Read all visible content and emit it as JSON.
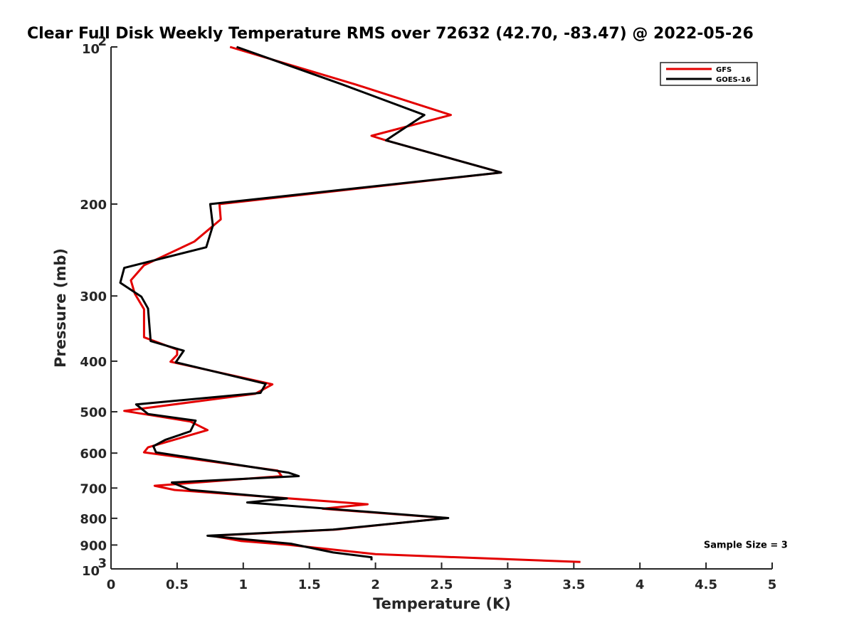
{
  "chart_data": {
    "type": "line",
    "title": "Clear Full Disk Weekly Temperature RMS over 72632 (42.70, -83.47) @ 2022-05-26",
    "xlabel": "Temperature (K)",
    "ylabel": "Pressure (mb)",
    "xlim": [
      0,
      5
    ],
    "ylim": [
      1000,
      100
    ],
    "y_scale": "log",
    "y_reversed": true,
    "grid": false,
    "legend_position": "top-right",
    "x_ticks": [
      {
        "value": 0,
        "label": "0"
      },
      {
        "value": 0.5,
        "label": "0.5"
      },
      {
        "value": 1,
        "label": "1"
      },
      {
        "value": 1.5,
        "label": "1.5"
      },
      {
        "value": 2,
        "label": "2"
      },
      {
        "value": 2.5,
        "label": "2.5"
      },
      {
        "value": 3,
        "label": "3"
      },
      {
        "value": 3.5,
        "label": "3.5"
      },
      {
        "value": 4,
        "label": "4"
      },
      {
        "value": 4.5,
        "label": "4.5"
      },
      {
        "value": 5,
        "label": "5"
      }
    ],
    "y_ticks": [
      {
        "value": 100,
        "base": "10",
        "exp": "2"
      },
      {
        "value": 200,
        "label": "200"
      },
      {
        "value": 300,
        "label": "300"
      },
      {
        "value": 400,
        "label": "400"
      },
      {
        "value": 500,
        "label": "500"
      },
      {
        "value": 600,
        "label": "600"
      },
      {
        "value": 700,
        "label": "700"
      },
      {
        "value": 800,
        "label": "800"
      },
      {
        "value": 900,
        "label": "900"
      },
      {
        "value": 1000,
        "base": "10",
        "exp": "3"
      }
    ],
    "series": [
      {
        "name": "GFS",
        "color": "#e30000",
        "points": [
          [
            0.9,
            100
          ],
          [
            1.85,
            118
          ],
          [
            2.57,
            135
          ],
          [
            1.97,
            148
          ],
          [
            2.08,
            151
          ],
          [
            2.95,
            174
          ],
          [
            0.82,
            200
          ],
          [
            0.83,
            214
          ],
          [
            0.63,
            236
          ],
          [
            0.25,
            262
          ],
          [
            0.15,
            280
          ],
          [
            0.18,
            297
          ],
          [
            0.25,
            318
          ],
          [
            0.25,
            360
          ],
          [
            0.5,
            380
          ],
          [
            0.5,
            389
          ],
          [
            0.45,
            401
          ],
          [
            0.9,
            425
          ],
          [
            1.22,
            443
          ],
          [
            1.09,
            462
          ],
          [
            0.1,
            498
          ],
          [
            0.6,
            522
          ],
          [
            0.73,
            542
          ],
          [
            0.28,
            585
          ],
          [
            0.25,
            598
          ],
          [
            1.26,
            648
          ],
          [
            1.29,
            664
          ],
          [
            0.33,
            693
          ],
          [
            0.48,
            706
          ],
          [
            1.94,
            752
          ],
          [
            1.6,
            767
          ],
          [
            2.54,
            799
          ],
          [
            1.7,
            841
          ],
          [
            0.76,
            864
          ],
          [
            0.98,
            884
          ],
          [
            1.34,
            899
          ],
          [
            2.0,
            937
          ],
          [
            3.55,
            970
          ]
        ]
      },
      {
        "name": "GOES-16",
        "color": "#000000",
        "points": [
          [
            0.95,
            100
          ],
          [
            1.75,
            118
          ],
          [
            2.37,
            135
          ],
          [
            2.13,
            148
          ],
          [
            2.08,
            151
          ],
          [
            2.95,
            174
          ],
          [
            0.75,
            200
          ],
          [
            0.77,
            220
          ],
          [
            0.72,
            242
          ],
          [
            0.1,
            265
          ],
          [
            0.07,
            283
          ],
          [
            0.23,
            301
          ],
          [
            0.28,
            317
          ],
          [
            0.3,
            366
          ],
          [
            0.55,
            382
          ],
          [
            0.49,
            402
          ],
          [
            0.77,
            418
          ],
          [
            1.17,
            442
          ],
          [
            1.13,
            460
          ],
          [
            0.19,
            484
          ],
          [
            0.28,
            505
          ],
          [
            0.64,
            520
          ],
          [
            0.6,
            545
          ],
          [
            0.41,
            566
          ],
          [
            0.32,
            582
          ],
          [
            0.34,
            598
          ],
          [
            1.34,
            654
          ],
          [
            1.42,
            664
          ],
          [
            0.46,
            683
          ],
          [
            0.6,
            706
          ],
          [
            1.33,
            733
          ],
          [
            1.03,
            746
          ],
          [
            2.55,
            799
          ],
          [
            1.68,
            841
          ],
          [
            0.73,
            864
          ],
          [
            1.36,
            895
          ],
          [
            1.68,
            930
          ],
          [
            1.97,
            950
          ],
          [
            1.97,
            963
          ]
        ]
      }
    ],
    "annotations": [
      {
        "text": "Sample Size = 3",
        "x": 4.8,
        "y": 900
      }
    ]
  }
}
